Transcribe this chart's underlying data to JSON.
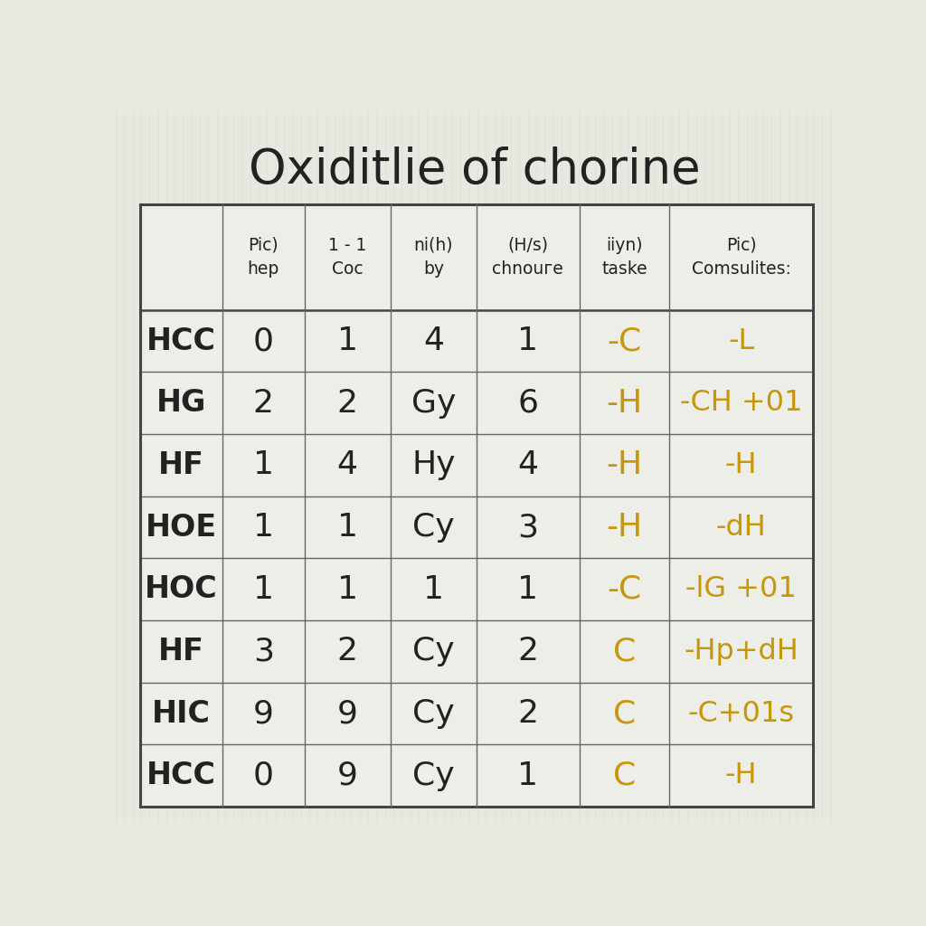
{
  "title": "Oxiditlie of chorine",
  "title_fontsize": 38,
  "background_color": "#e8e8e0",
  "table_bg": "#f0f0ea",
  "header_row": [
    "",
    "Pic)\nhep",
    "1 - 1\nCoc",
    "ni(h)\nby",
    "(H/s)\nchnouге",
    "iiyn)\ntaske",
    "Pic)\nComsulites:"
  ],
  "rows": [
    [
      "HCC",
      "0",
      "1",
      "4",
      "1",
      "-C",
      "-L"
    ],
    [
      "HG",
      "2",
      "2",
      "Gy",
      "6",
      "-H",
      "-CH +01"
    ],
    [
      "HF",
      "1",
      "4",
      "Hy",
      "4",
      "-H",
      "-H"
    ],
    [
      "HOE",
      "1",
      "1",
      "Cy",
      "3",
      "-H",
      "-dH"
    ],
    [
      "HOC",
      "1",
      "1",
      "1",
      "1",
      "-C",
      "-lG +01"
    ],
    [
      "HF",
      "3",
      "2",
      "Cy",
      "2",
      "C",
      "-Hp+dH"
    ],
    [
      "HIC",
      "9",
      "9",
      "Cy",
      "2",
      "C",
      "-C+01s"
    ],
    [
      "HCC",
      "0",
      "9",
      "Cy",
      "1",
      "C",
      "-H"
    ]
  ],
  "col5_color": "#c8960a",
  "col6_color": "#c8960a",
  "black_color": "#222222",
  "grid_color": "#666666",
  "line_color": "#444444",
  "stripe_color": "#d8d8d0",
  "table_fill": "#eeeee8"
}
